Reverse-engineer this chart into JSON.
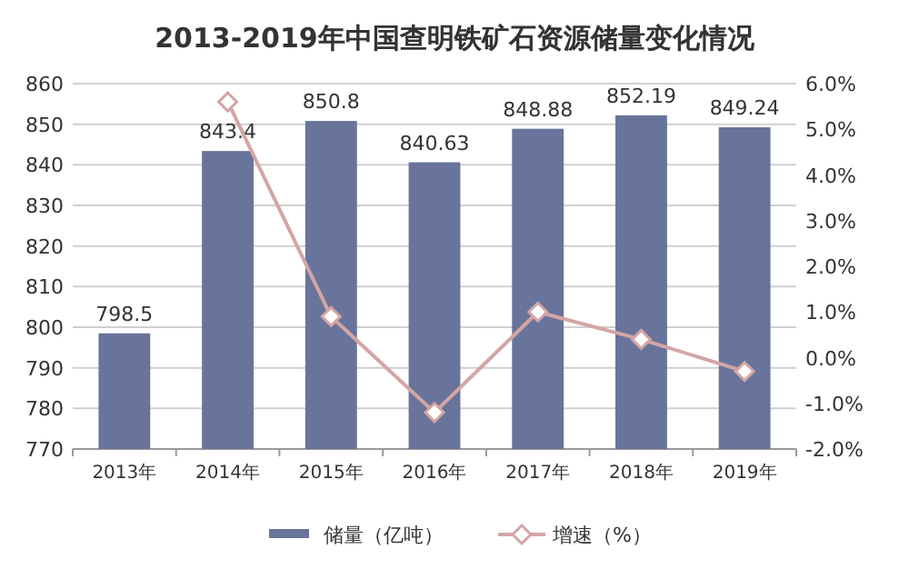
{
  "chart_data": {
    "type": "bar",
    "title": "2013-2019年中国查明铁矿石资源储量变化情况",
    "categories": [
      "2013年",
      "2014年",
      "2015年",
      "2016年",
      "2017年",
      "2018年",
      "2019年"
    ],
    "series": [
      {
        "name": "储量（亿吨）",
        "color": "#68749b",
        "values": [
          798.5,
          843.4,
          850.8,
          840.63,
          848.88,
          852.19,
          849.24
        ],
        "value_labels": [
          "798.5",
          "843.4",
          "850.8",
          "840.63",
          "848.88",
          "852.19",
          "849.24"
        ]
      },
      {
        "name": "增速（%）",
        "type": "line",
        "axis": "y2",
        "color": "#d4a5a5",
        "marker": "diamond",
        "values": [
          null,
          5.6,
          0.9,
          -1.2,
          1.0,
          0.4,
          -0.3
        ]
      }
    ],
    "ylim": [
      770,
      860
    ],
    "yticks": [
      770,
      780,
      790,
      800,
      810,
      820,
      830,
      840,
      850,
      860
    ],
    "y2lim": [
      -2,
      6
    ],
    "y2ticks": [
      {
        "value": -2,
        "label": "-2.0%"
      },
      {
        "value": -1,
        "label": "-1.0%"
      },
      {
        "value": 0,
        "label": "0.0%"
      },
      {
        "value": 1,
        "label": "1.0%"
      },
      {
        "value": 2,
        "label": "2.0%"
      },
      {
        "value": 3,
        "label": "3.0%"
      },
      {
        "value": 4,
        "label": "4.0%"
      },
      {
        "value": 5,
        "label": "5.0%"
      },
      {
        "value": 6,
        "label": "6.0%"
      }
    ],
    "grid": "y",
    "legend": "bottom"
  }
}
